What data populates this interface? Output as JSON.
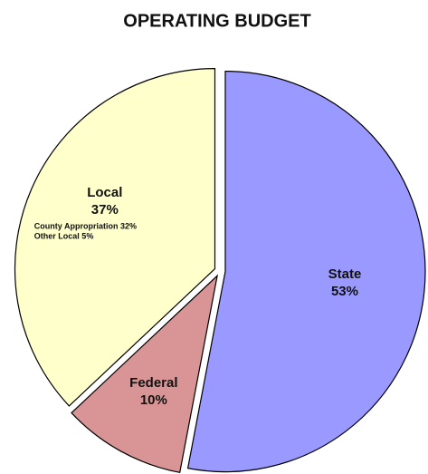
{
  "chart_data": {
    "type": "pie",
    "title": "OPERATING BUDGET",
    "categories": [
      "State",
      "Federal",
      "Local"
    ],
    "values": [
      53,
      10,
      37
    ],
    "value_labels": [
      "53%",
      "10%",
      "37%"
    ],
    "colors": [
      "#9999ff",
      "#d99595",
      "#ffffcc"
    ],
    "annotations": [
      "County Appropriation 32%",
      "Other Local 5%"
    ]
  }
}
